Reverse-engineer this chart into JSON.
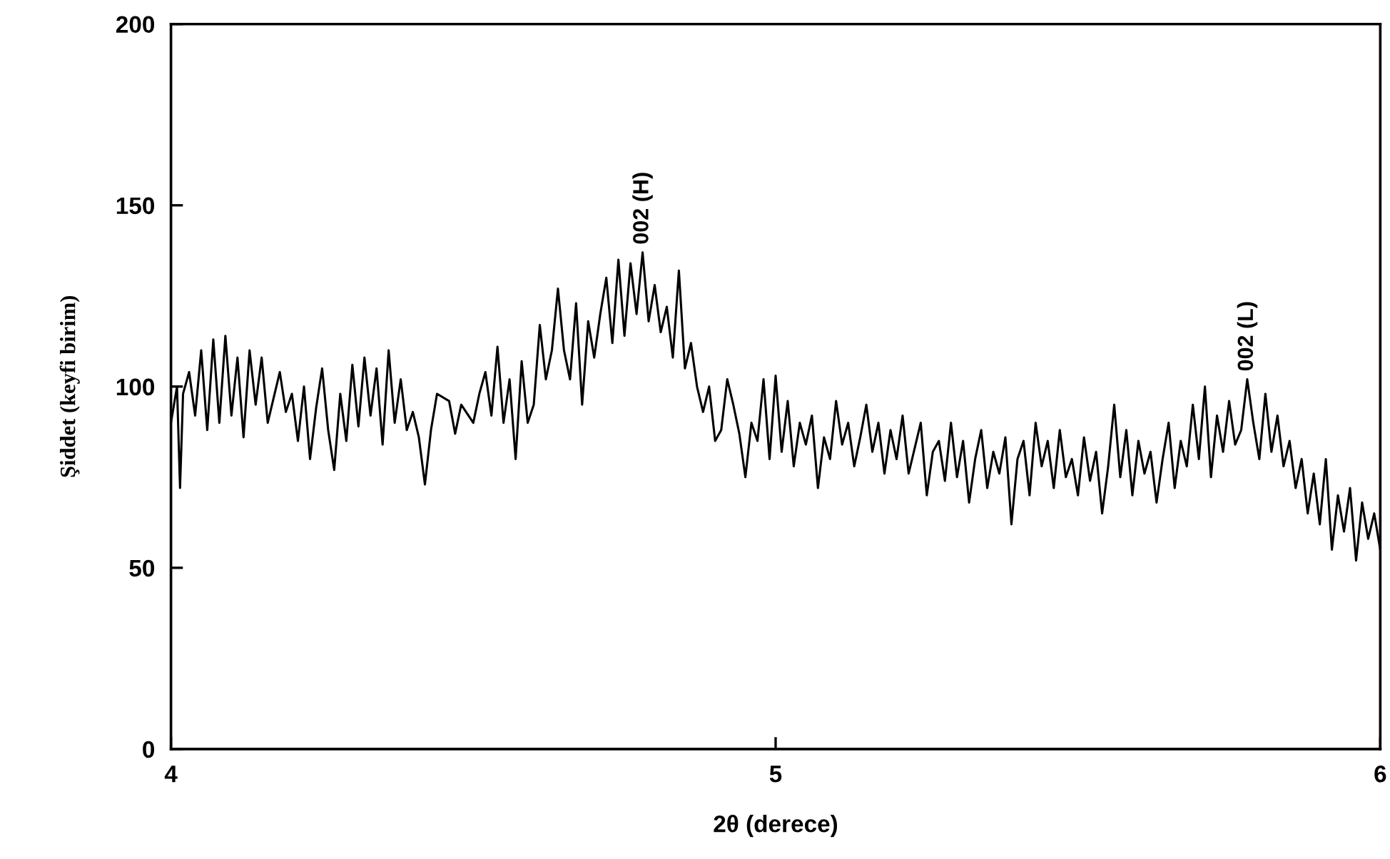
{
  "chart_data": {
    "type": "line",
    "xlabel": "2θ (derece)",
    "ylabel": "Şiddet (keyfi birim)",
    "xlim": [
      4,
      6
    ],
    "xticks": [
      4,
      5,
      6
    ],
    "ylim": [
      0,
      200
    ],
    "yticks": [
      0,
      50,
      100,
      150,
      200
    ],
    "grid": false,
    "legend": false,
    "marker": "none",
    "line_style": "solid",
    "series": [
      {
        "color": "#000000",
        "x": [
          4.0,
          4.01,
          4.015,
          4.02,
          4.03,
          4.04,
          4.05,
          4.06,
          4.07,
          4.08,
          4.09,
          4.1,
          4.11,
          4.12,
          4.13,
          4.14,
          4.15,
          4.16,
          4.18,
          4.19,
          4.2,
          4.21,
          4.22,
          4.23,
          4.24,
          4.25,
          4.26,
          4.27,
          4.28,
          4.29,
          4.3,
          4.31,
          4.32,
          4.33,
          4.34,
          4.35,
          4.36,
          4.37,
          4.38,
          4.39,
          4.4,
          4.41,
          4.42,
          4.43,
          4.44,
          4.46,
          4.47,
          4.48,
          4.5,
          4.51,
          4.52,
          4.53,
          4.54,
          4.55,
          4.56,
          4.57,
          4.58,
          4.59,
          4.6,
          4.61,
          4.62,
          4.63,
          4.64,
          4.65,
          4.66,
          4.67,
          4.68,
          4.69,
          4.7,
          4.71,
          4.72,
          4.73,
          4.74,
          4.75,
          4.76,
          4.77,
          4.78,
          4.79,
          4.8,
          4.81,
          4.82,
          4.83,
          4.84,
          4.85,
          4.86,
          4.87,
          4.88,
          4.89,
          4.9,
          4.91,
          4.92,
          4.93,
          4.94,
          4.95,
          4.96,
          4.97,
          4.98,
          4.99,
          5.0,
          5.01,
          5.02,
          5.03,
          5.04,
          5.05,
          5.06,
          5.07,
          5.08,
          5.09,
          5.1,
          5.11,
          5.12,
          5.13,
          5.14,
          5.15,
          5.16,
          5.17,
          5.18,
          5.19,
          5.2,
          5.21,
          5.22,
          5.23,
          5.24,
          5.25,
          5.26,
          5.27,
          5.28,
          5.29,
          5.3,
          5.31,
          5.32,
          5.33,
          5.34,
          5.35,
          5.36,
          5.37,
          5.38,
          5.39,
          5.4,
          5.41,
          5.42,
          5.43,
          5.44,
          5.45,
          5.46,
          5.47,
          5.48,
          5.49,
          5.5,
          5.51,
          5.52,
          5.53,
          5.54,
          5.55,
          5.56,
          5.57,
          5.58,
          5.59,
          5.6,
          5.61,
          5.62,
          5.63,
          5.64,
          5.65,
          5.66,
          5.67,
          5.68,
          5.69,
          5.7,
          5.71,
          5.72,
          5.73,
          5.74,
          5.75,
          5.76,
          5.77,
          5.78,
          5.79,
          5.8,
          5.81,
          5.82,
          5.83,
          5.84,
          5.85,
          5.86,
          5.87,
          5.88,
          5.89,
          5.9,
          5.91,
          5.92,
          5.93,
          5.94,
          5.95,
          5.96,
          5.97,
          5.98,
          5.99,
          6.0
        ],
        "values": [
          90,
          100,
          72,
          98,
          104,
          92,
          110,
          88,
          113,
          90,
          114,
          92,
          108,
          86,
          110,
          95,
          108,
          90,
          104,
          93,
          98,
          85,
          100,
          80,
          94,
          105,
          88,
          77,
          98,
          85,
          106,
          89,
          108,
          92,
          105,
          84,
          110,
          90,
          102,
          88,
          93,
          86,
          73,
          88,
          98,
          96,
          87,
          95,
          90,
          98,
          104,
          92,
          111,
          90,
          102,
          80,
          107,
          90,
          95,
          117,
          102,
          110,
          127,
          110,
          102,
          123,
          95,
          118,
          108,
          120,
          130,
          112,
          135,
          114,
          134,
          120,
          137,
          118,
          128,
          115,
          122,
          108,
          132,
          105,
          112,
          100,
          93,
          100,
          85,
          88,
          102,
          95,
          87,
          75,
          90,
          85,
          102,
          80,
          103,
          82,
          96,
          78,
          90,
          84,
          92,
          72,
          86,
          80,
          96,
          84,
          90,
          78,
          86,
          95,
          82,
          90,
          76,
          88,
          80,
          92,
          76,
          83,
          90,
          70,
          82,
          85,
          74,
          90,
          75,
          85,
          68,
          80,
          88,
          72,
          82,
          76,
          86,
          62,
          80,
          85,
          70,
          90,
          78,
          85,
          72,
          88,
          75,
          80,
          70,
          86,
          74,
          82,
          65,
          78,
          95,
          75,
          88,
          70,
          85,
          76,
          82,
          68,
          80,
          90,
          72,
          85,
          78,
          95,
          80,
          100,
          75,
          92,
          82,
          96,
          84,
          88,
          102,
          90,
          80,
          98,
          82,
          92,
          78,
          85,
          72,
          80,
          65,
          76,
          62,
          80,
          55,
          70,
          60,
          72,
          52,
          68,
          58,
          65,
          55
        ]
      }
    ],
    "annotations": [
      {
        "text": "002 (H)",
        "x": 4.78,
        "y": 137
      },
      {
        "text": "002 (L)",
        "x": 5.78,
        "y": 102
      }
    ]
  }
}
